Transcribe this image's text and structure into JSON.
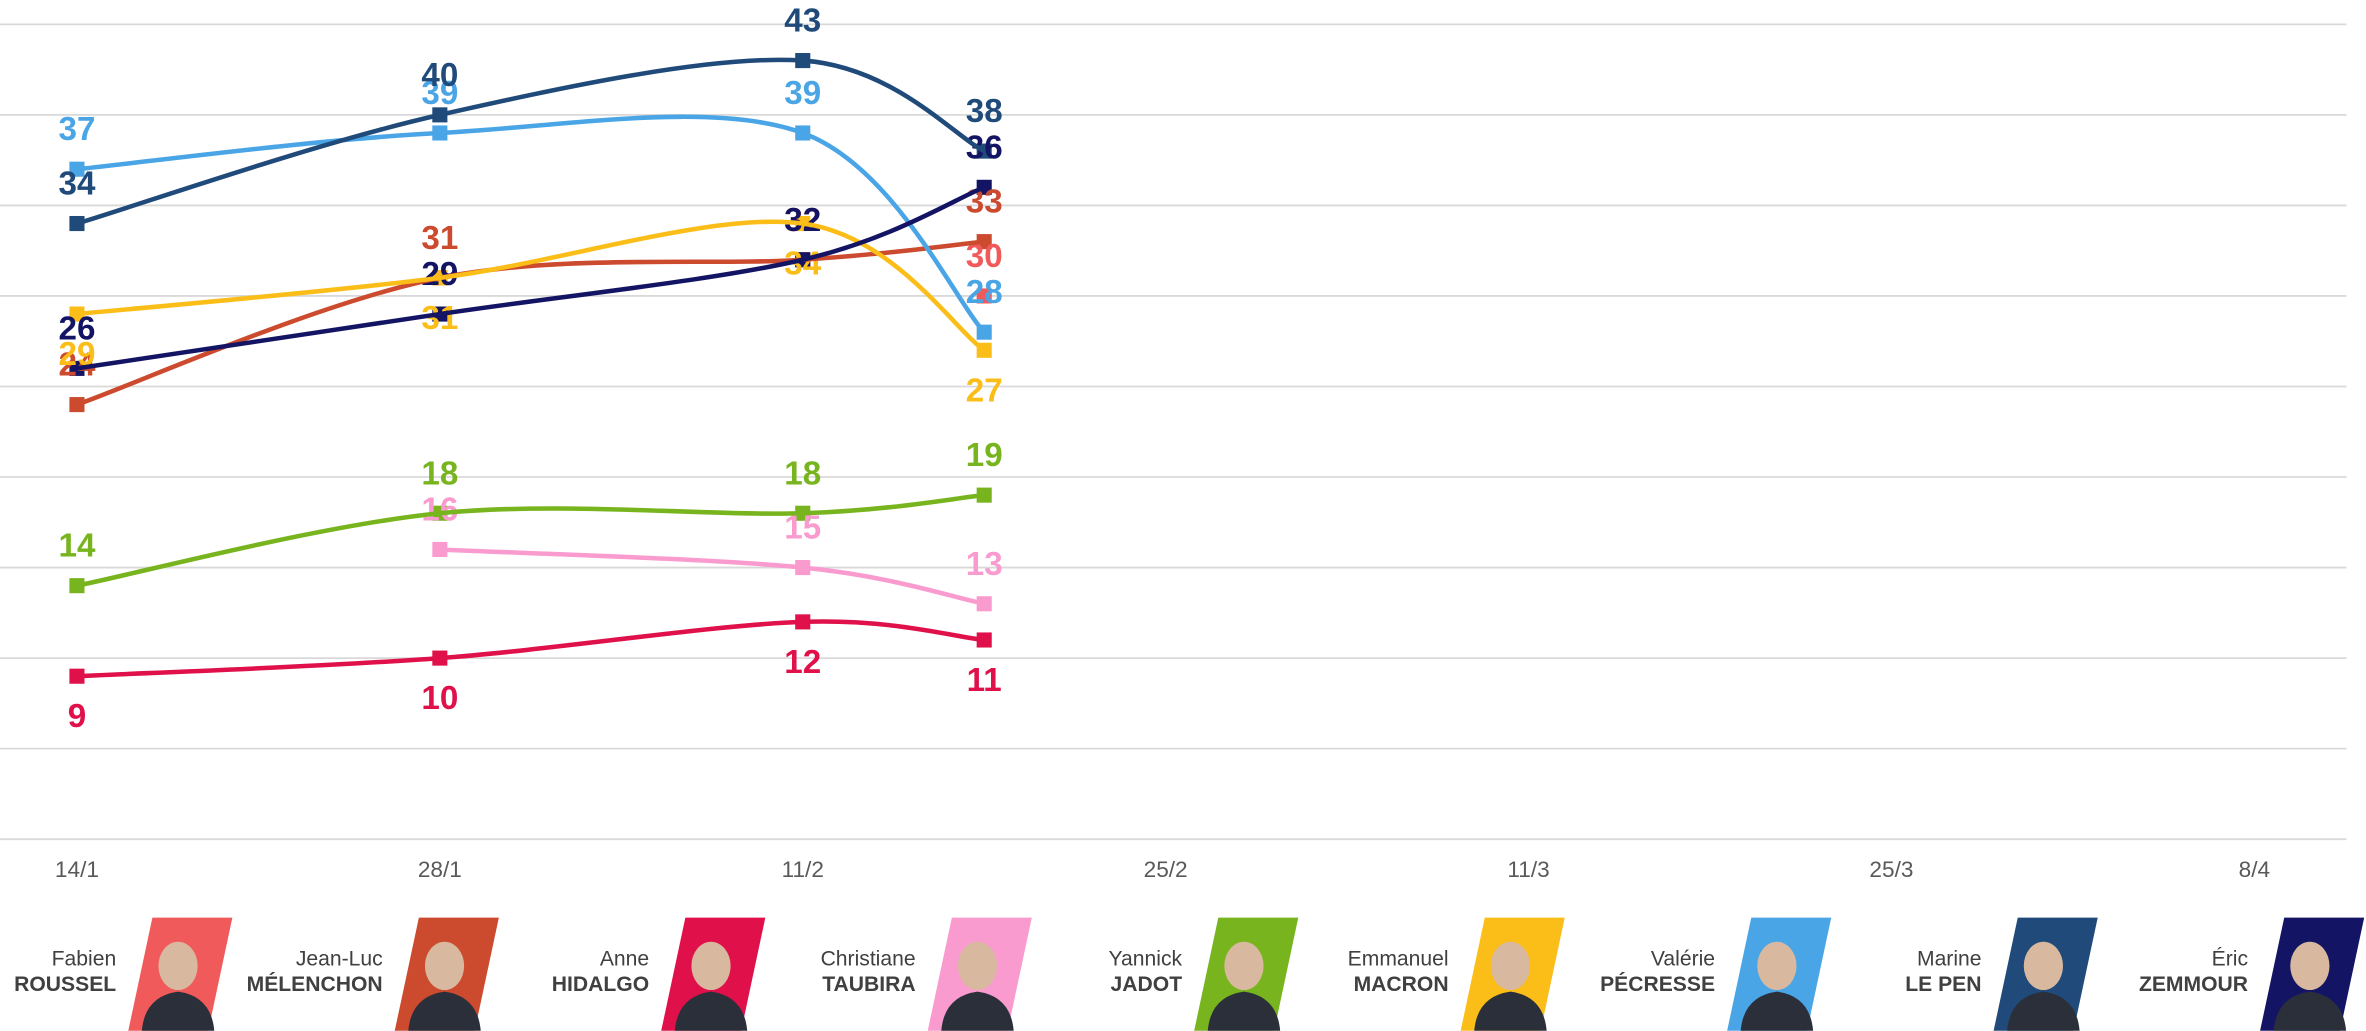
{
  "chart_data": {
    "type": "line",
    "x": [
      0,
      14,
      28,
      35
    ],
    "xlim": [
      0,
      84
    ],
    "xticks": [
      {
        "value": 0,
        "label": "14/1"
      },
      {
        "value": 14,
        "label": "28/1"
      },
      {
        "value": 28,
        "label": "11/2"
      },
      {
        "value": 42,
        "label": "25/2"
      },
      {
        "value": 56,
        "label": "11/3"
      },
      {
        "value": 70,
        "label": "25/3"
      },
      {
        "value": 84,
        "label": "8/4"
      }
    ],
    "ylim": [
      0,
      45
    ],
    "yticks": [
      0,
      5,
      10,
      15,
      20,
      25,
      30,
      35,
      40,
      45
    ],
    "grid": true,
    "series": [
      {
        "first_name": "Fabien",
        "last_name": "ROUSSEL",
        "color": "#f05a5a",
        "values": [
          null,
          null,
          null,
          30
        ]
      },
      {
        "first_name": "Jean-Luc",
        "last_name": "MÉLENCHON",
        "color": "#cc4a2e",
        "values": [
          24,
          31,
          32,
          33
        ]
      },
      {
        "first_name": "Anne",
        "last_name": "HIDALGO",
        "color": "#e0104a",
        "values": [
          9,
          10,
          12,
          11
        ]
      },
      {
        "first_name": "Christiane",
        "last_name": "TAUBIRA",
        "color": "#f99bcf",
        "values": [
          null,
          16,
          15,
          13
        ]
      },
      {
        "first_name": "Yannick",
        "last_name": "JADOT",
        "color": "#77b41e",
        "values": [
          14,
          18,
          18,
          19
        ]
      },
      {
        "first_name": "Emmanuel",
        "last_name": "MACRON",
        "color": "#fbbd18",
        "values": [
          29,
          31,
          34,
          27
        ]
      },
      {
        "first_name": "Valérie",
        "last_name": "PÉCRESSE",
        "color": "#4aa5e6",
        "values": [
          37,
          39,
          39,
          28
        ]
      },
      {
        "first_name": "Marine",
        "last_name": "LE PEN",
        "color": "#1f4a7a",
        "values": [
          34,
          40,
          43,
          38
        ]
      },
      {
        "first_name": "Éric",
        "last_name": "ZEMMOUR",
        "color": "#141464",
        "values": [
          26,
          29,
          32,
          36
        ]
      }
    ]
  }
}
